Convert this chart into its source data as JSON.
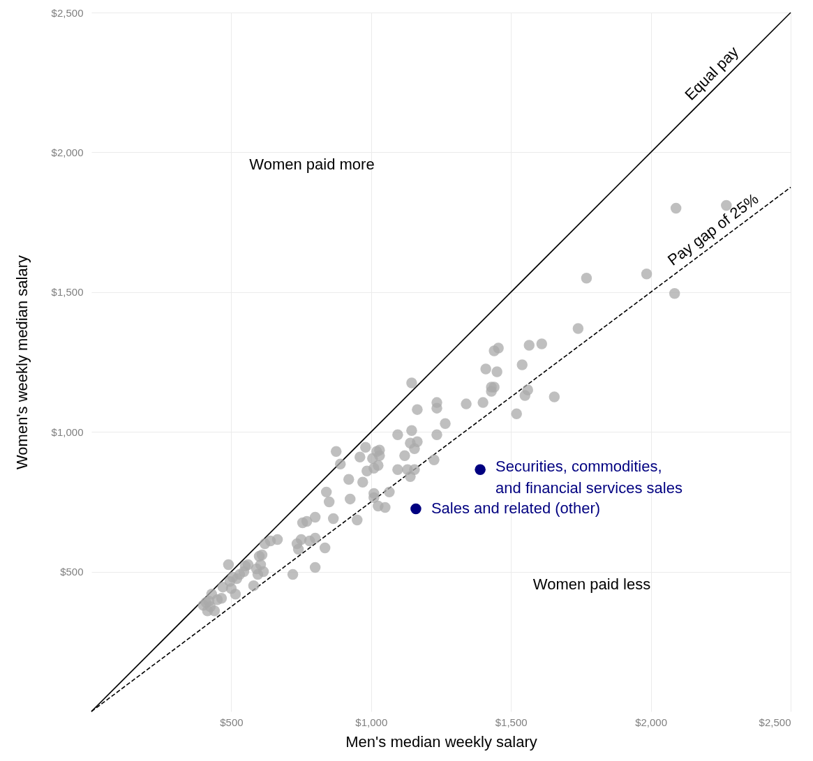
{
  "chart_data": {
    "type": "scatter",
    "xlabel": "Men's median weekly salary",
    "ylabel": "Women's weekly median salary",
    "xlim": [
      0,
      2500
    ],
    "ylim": [
      0,
      2500
    ],
    "xticks": [
      {
        "value": 500,
        "label": "$500"
      },
      {
        "value": 1000,
        "label": "$1,000"
      },
      {
        "value": 1500,
        "label": "$1,500"
      },
      {
        "value": 2000,
        "label": "$2,000"
      },
      {
        "value": 2500,
        "label": "$2,500"
      }
    ],
    "yticks": [
      {
        "value": 500,
        "label": "$500"
      },
      {
        "value": 1000,
        "label": "$1,000"
      },
      {
        "value": 1500,
        "label": "$1,500"
      },
      {
        "value": 2000,
        "label": "$2,000"
      },
      {
        "value": 2500,
        "label": "$2,500"
      }
    ],
    "grid": true,
    "marker": "circle",
    "series": [
      {
        "color": "#aaaaaa",
        "x": [
          2090,
          2270,
          1770,
          1985,
          2085,
          1740,
          1655,
          1520,
          1610,
          1565,
          1540,
          1550,
          1560,
          1455,
          1440,
          1410,
          1450,
          1430,
          1440,
          1430,
          1400,
          1340,
          1265,
          1235,
          1235,
          1235,
          1225,
          1145,
          1165,
          1165,
          1155,
          1145,
          1140,
          1155,
          1140,
          1120,
          1130,
          1095,
          1095,
          1065,
          1050,
          1030,
          1030,
          1025,
          1020,
          1010,
          1005,
          1010,
          1010,
          1025,
          985,
          980,
          970,
          960,
          950,
          925,
          920,
          890,
          875,
          865,
          850,
          840,
          835,
          800,
          800,
          800,
          780,
          770,
          755,
          750,
          740,
          735,
          720,
          665,
          640,
          620,
          615,
          610,
          605,
          600,
          595,
          590,
          580,
          560,
          550,
          545,
          530,
          520,
          515,
          505,
          500,
          490,
          495,
          470,
          465,
          450,
          440,
          430,
          425,
          415,
          410,
          400,
          420
        ],
        "values": [
          1800,
          1810,
          1550,
          1565,
          1495,
          1370,
          1125,
          1065,
          1315,
          1310,
          1240,
          1130,
          1150,
          1300,
          1290,
          1225,
          1215,
          1160,
          1160,
          1145,
          1105,
          1100,
          1030,
          1105,
          1085,
          990,
          900,
          1175,
          1080,
          965,
          940,
          1005,
          960,
          865,
          840,
          915,
          865,
          990,
          865,
          785,
          730,
          935,
          915,
          880,
          930,
          870,
          905,
          780,
          765,
          735,
          860,
          945,
          820,
          910,
          685,
          760,
          830,
          885,
          930,
          690,
          750,
          785,
          585,
          695,
          620,
          515,
          610,
          680,
          675,
          615,
          580,
          600,
          490,
          615,
          610,
          600,
          500,
          560,
          525,
          555,
          490,
          510,
          450,
          525,
          520,
          500,
          490,
          475,
          420,
          480,
          440,
          525,
          465,
          445,
          405,
          400,
          360,
          420,
          375,
          360,
          390,
          380,
          395
        ]
      },
      {
        "color": "#000080",
        "x": [
          1390,
          1160
        ],
        "values": [
          865,
          725
        ]
      },
      {
        "type": "line",
        "name": "Equal pay",
        "color": "#000000",
        "marker": "none",
        "line_style": "solid",
        "x": [
          0,
          2500
        ],
        "values": [
          0,
          2500
        ]
      },
      {
        "type": "line",
        "name": "Pay gap of 25%",
        "color": "#000000",
        "marker": "none",
        "line_style": "dashed",
        "x": [
          0,
          2500
        ],
        "values": [
          0,
          1875
        ]
      }
    ],
    "annotations": [
      {
        "text": "Securities, commodities,\nand financial services sales",
        "x": 1390,
        "y": 865
      },
      {
        "text": "Sales and related (other)",
        "x": 1160,
        "y": 725
      },
      "Women paid more",
      "Women paid less"
    ]
  }
}
